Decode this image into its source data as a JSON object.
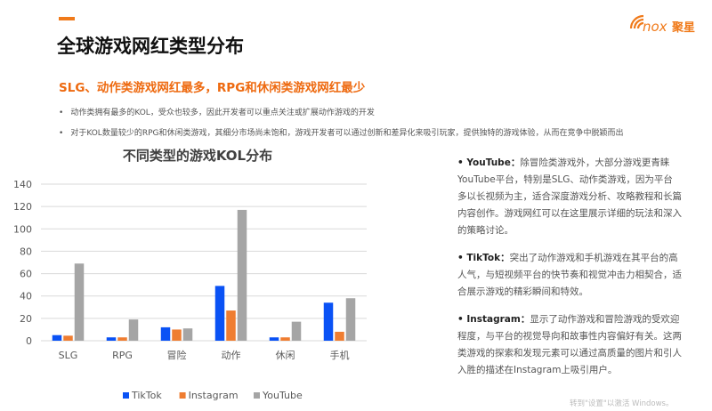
{
  "header": {
    "title": "全球游戏网红类型分布",
    "subtitle": "SLG、动作类游戏网红最多，RPG和休闲类游戏网红最少",
    "bullets": [
      "动作类拥有最多的KOL，受众也较多，因此开发者可以重点关注或扩展动作游戏的开发",
      "对于KOL数量较少的RPG和休闲类游戏，其细分市场尚未饱和，游戏开发者可以通过创新和差异化来吸引玩家，提供独特的游戏体验，从而在竞争中脱颖而出"
    ],
    "logo_text": "nox聚星",
    "accent_color": "#f07a1a"
  },
  "chart_data": {
    "type": "bar",
    "title": "不同类型的游戏KOL分布",
    "categories": [
      "SLG",
      "RPG",
      "冒险",
      "动作",
      "休闲",
      "手机"
    ],
    "series": [
      {
        "name": "TikTok",
        "color": "#0a52f5",
        "values": [
          5,
          3,
          12,
          49,
          3,
          34
        ]
      },
      {
        "name": "Instagram",
        "color": "#ef7d31",
        "values": [
          4.5,
          3,
          10,
          27,
          3,
          8
        ]
      },
      {
        "name": "YouTube",
        "color": "#a5a5a5",
        "values": [
          69,
          19,
          11,
          117,
          17,
          38
        ]
      }
    ],
    "ylim": [
      0,
      140
    ],
    "yticks": [
      "0",
      "20",
      "40",
      "60",
      "80",
      "100",
      "120",
      "140"
    ],
    "grid": true,
    "legend": "bottom"
  },
  "side_notes": [
    {
      "label": "• YouTube：",
      "text": "除冒险类游戏外，大部分游戏更青睐YouTube平台，特别是SLG、动作类游戏，因为平台多以长视频为主，适合深度游戏分析、攻略教程和长篇内容创作。游戏网红可以在这里展示详细的玩法和深入的策略讨论。"
    },
    {
      "label": "• TikTok：",
      "text": "突出了动作游戏和手机游戏在其平台的高人气，与短视频平台的快节奏和视觉冲击力相契合，适合展示游戏的精彩瞬间和特效。"
    },
    {
      "label": "• Instagram：",
      "text": "显示了动作游戏和冒险游戏的受欢迎程度，与平台的视觉导向和故事性内容偏好有关。这两类游戏的探索和发现元素可以通过高质量的图片和引人入胜的描述在Instagram上吸引用户。"
    }
  ],
  "watermark": "转到\"设置\"以激活 Windows。"
}
